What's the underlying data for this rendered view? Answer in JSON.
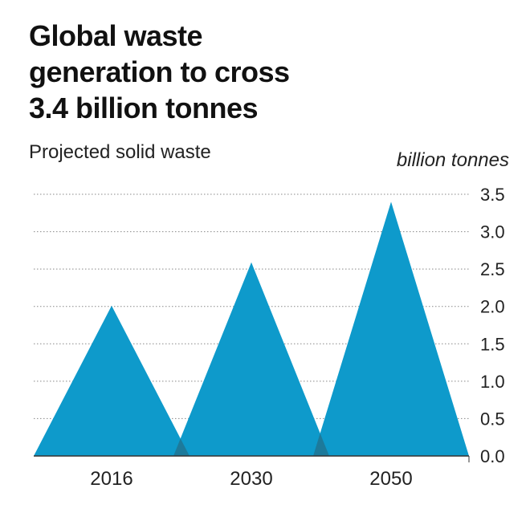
{
  "title": "Global waste\ngeneration to cross\n3.4 billion tonnes",
  "subtitle": "Projected solid waste",
  "unit_label": "billion tonnes",
  "colors": {
    "accent": "#0E9ACB",
    "overlap": "#1D7A9B",
    "grid": "#888888",
    "axis": "#333333"
  },
  "chart_data": {
    "type": "area",
    "title": "Global waste\ngeneration to cross\n3.4 billion tonnes",
    "subtitle": "Projected solid waste",
    "ylabel": "billion tonnes",
    "xlabel": "",
    "categories": [
      "2016",
      "2030",
      "2050"
    ],
    "values": [
      2.01,
      2.59,
      3.4
    ],
    "ylim": [
      0,
      3.5
    ],
    "y_ticks": [
      "0.0",
      "0.5",
      "1.0",
      "1.5",
      "2.0",
      "2.5",
      "3.0",
      "3.5"
    ],
    "grid": true,
    "legend": "none"
  }
}
